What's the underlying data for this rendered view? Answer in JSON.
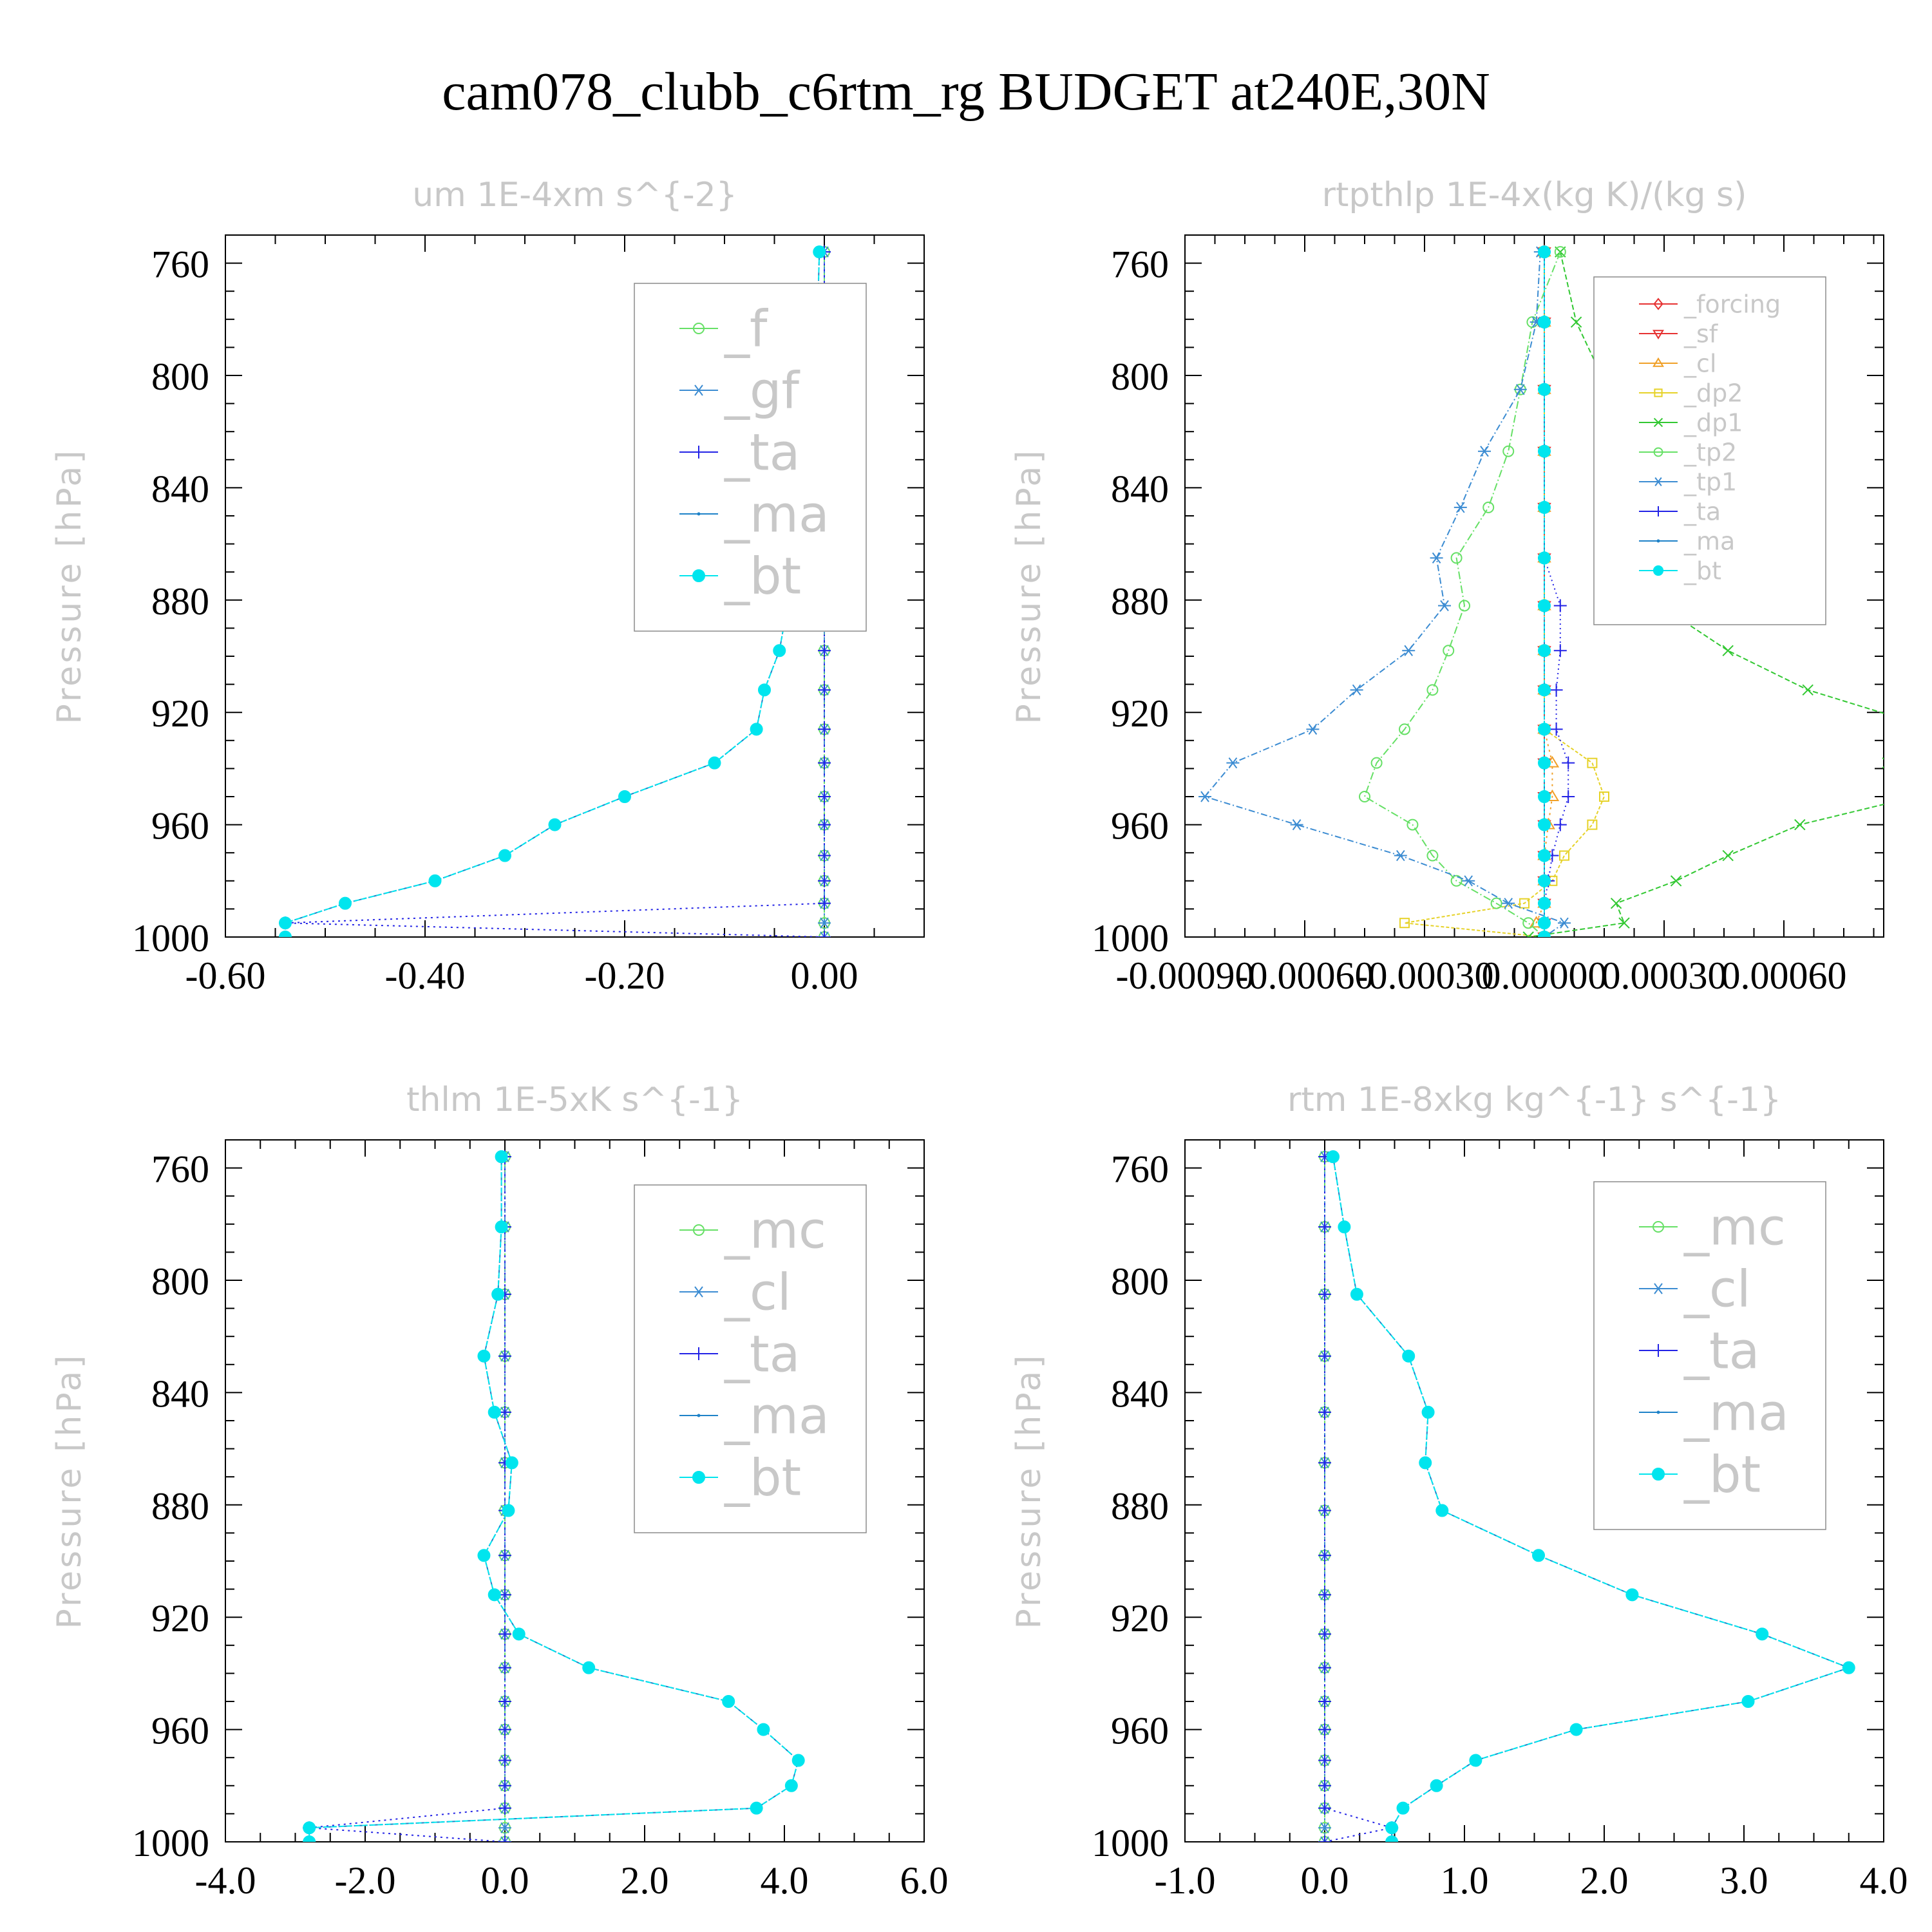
{
  "figure_title": "cam078_clubb_c6rtm_rg  BUDGET at240E,30N",
  "chart_data": [
    {
      "type": "line",
      "title": "um   1E-4xm s^{-2}",
      "ylabel": "Pressure [hPa]",
      "xlim": [
        -0.6,
        0.1
      ],
      "ylim": [
        1000,
        750
      ],
      "x_ticks": [
        -0.6,
        -0.4,
        -0.2,
        0.0
      ],
      "x_tick_labels": [
        "-0.60",
        "-0.40",
        "-0.20",
        "0.00"
      ],
      "y_ticks": [
        760,
        800,
        840,
        880,
        920,
        960,
        1000
      ],
      "y_tick_labels": [
        "760",
        "800",
        "840",
        "880",
        "920",
        "960",
        "1000"
      ],
      "legend_entries": [
        "_f",
        "_gf",
        "_ta",
        "_ma",
        "_bt"
      ],
      "pressure": [
        756,
        781,
        805,
        827,
        847,
        865,
        882,
        898,
        912,
        926,
        938,
        950,
        960,
        971,
        980,
        988,
        995,
        1000
      ],
      "series": [
        {
          "name": "_f",
          "color": "#66e066",
          "marker": "circle",
          "values": [
            0,
            0,
            0,
            0,
            0,
            0,
            0,
            0,
            0,
            0,
            0,
            0,
            0,
            0,
            0,
            0,
            0,
            0
          ]
        },
        {
          "name": "_gf",
          "color": "#3c8cd2",
          "marker": "asterisk",
          "values": [
            0,
            0,
            0,
            0,
            0,
            0,
            0,
            0,
            0,
            0,
            0,
            0,
            0,
            0,
            0,
            0,
            0,
            0
          ]
        },
        {
          "name": "_ta",
          "color": "#2323e6",
          "marker": "plus",
          "values": [
            0,
            0,
            0,
            0,
            0,
            0,
            0,
            0,
            0,
            0,
            0,
            0,
            0,
            0,
            0,
            0,
            -0.54,
            0
          ]
        },
        {
          "name": "_ma",
          "color": "#1e82c8",
          "marker": "dot",
          "values": [
            -0.005,
            -0.007,
            -0.012,
            -0.02,
            -0.028,
            -0.032,
            -0.037,
            -0.045,
            -0.06,
            -0.068,
            -0.11,
            -0.2,
            -0.27,
            -0.32,
            -0.39,
            -0.48,
            -0.54,
            -0.54
          ]
        },
        {
          "name": "_bt",
          "color": "#00e5ee",
          "marker": "filled-circle",
          "values": [
            -0.005,
            -0.007,
            -0.012,
            -0.02,
            -0.028,
            -0.032,
            -0.037,
            -0.045,
            -0.06,
            -0.068,
            -0.11,
            -0.2,
            -0.27,
            -0.32,
            -0.39,
            -0.48,
            -0.54,
            -0.54
          ]
        }
      ]
    },
    {
      "type": "line",
      "title": "rtpthlp   1E-4x(kg K)/(kg s)",
      "ylabel": "Pressure [hPa]",
      "xlim": [
        -0.0009,
        0.00085
      ],
      "ylim": [
        1000,
        750
      ],
      "x_ticks": [
        -0.0009,
        -0.0006,
        -0.0003,
        0.0,
        0.0003,
        0.0006
      ],
      "x_tick_labels": [
        "-0.00090",
        "-0.00060",
        "-0.00030",
        "0.00000",
        "0.00030",
        "0.00060"
      ],
      "y_ticks": [
        760,
        800,
        840,
        880,
        920,
        960,
        1000
      ],
      "y_tick_labels": [
        "760",
        "800",
        "840",
        "880",
        "920",
        "960",
        "1000"
      ],
      "legend_entries": [
        "_forcing",
        "_sf",
        "_cl",
        "_dp2",
        "_dp1",
        "_tp2",
        "_tp1",
        "_ta",
        "_ma",
        "_bt"
      ],
      "pressure": [
        756,
        781,
        805,
        827,
        847,
        865,
        882,
        898,
        912,
        926,
        938,
        950,
        960,
        971,
        980,
        988,
        995,
        1000
      ],
      "series": [
        {
          "name": "_forcing",
          "color": "#e63232",
          "marker": "diamond",
          "values": [
            0,
            0,
            0,
            0,
            0,
            0,
            0,
            0,
            0,
            0,
            0,
            0,
            0,
            0,
            0,
            0,
            0,
            0
          ]
        },
        {
          "name": "_sf",
          "color": "#e63232",
          "marker": "triangle-down",
          "values": [
            0,
            0,
            0,
            0,
            0,
            0,
            0,
            0,
            0,
            0,
            0,
            0,
            0,
            0,
            0,
            0,
            0,
            0
          ]
        },
        {
          "name": "_cl",
          "color": "#f0a028",
          "marker": "triangle-up",
          "values": [
            0,
            0,
            0,
            0,
            0,
            0,
            0,
            0,
            0,
            0,
            2e-05,
            2e-05,
            1e-05,
            0,
            0,
            0,
            -2e-05,
            0
          ]
        },
        {
          "name": "_dp2",
          "color": "#e6d228",
          "marker": "square",
          "values": [
            0,
            0,
            0,
            0,
            0,
            0,
            0,
            0,
            0,
            0,
            0.00012,
            0.00015,
            0.00012,
            5e-05,
            2e-05,
            -5e-05,
            -0.00035,
            0
          ]
        },
        {
          "name": "_dp1",
          "color": "#32c832",
          "marker": "x",
          "values": [
            4e-05,
            8e-05,
            0.00016,
            0.0002,
            0.00027,
            0.0003,
            0.00029,
            0.00046,
            0.00066,
            0.00098,
            0.00086,
            0.00093,
            0.00064,
            0.00046,
            0.00033,
            0.00018,
            0.0002,
            -4e-05
          ]
        },
        {
          "name": "_tp2",
          "color": "#66e066",
          "marker": "circle",
          "values": [
            4e-05,
            -3e-05,
            -6e-05,
            -9e-05,
            -0.00014,
            -0.00022,
            -0.0002,
            -0.00024,
            -0.00028,
            -0.00035,
            -0.00042,
            -0.00045,
            -0.00033,
            -0.00028,
            -0.00022,
            -0.00012,
            -4e-05,
            0
          ]
        },
        {
          "name": "_tp1",
          "color": "#3c8cd2",
          "marker": "asterisk",
          "values": [
            -1e-05,
            -2e-05,
            -6e-05,
            -0.00015,
            -0.00021,
            -0.00027,
            -0.00025,
            -0.00034,
            -0.00047,
            -0.00058,
            -0.00078,
            -0.00085,
            -0.00062,
            -0.00036,
            -0.00019,
            -9e-05,
            5e-05,
            0
          ]
        },
        {
          "name": "_ta",
          "color": "#2323e6",
          "marker": "plus",
          "values": [
            0,
            0,
            0,
            0,
            0,
            0,
            4e-05,
            4e-05,
            3e-05,
            3e-05,
            6e-05,
            6e-05,
            4e-05,
            2e-05,
            1e-05,
            0,
            0,
            0
          ]
        },
        {
          "name": "_ma",
          "color": "#1e82c8",
          "marker": "dot",
          "values": [
            0,
            0,
            0,
            0,
            0,
            0,
            0,
            0,
            0,
            0,
            0,
            0,
            0,
            0,
            0,
            0,
            0,
            0
          ]
        },
        {
          "name": "_bt",
          "color": "#00e5ee",
          "marker": "filled-circle",
          "values": [
            0,
            0,
            0,
            0,
            0,
            0,
            0,
            0,
            0,
            0,
            0,
            0,
            0,
            0,
            0,
            0,
            0,
            0
          ]
        }
      ]
    },
    {
      "type": "line",
      "title": "thlm   1E-5xK s^{-1}",
      "ylabel": "Pressure [hPa]",
      "xlim": [
        -4.0,
        6.0
      ],
      "ylim": [
        1000,
        750
      ],
      "x_ticks": [
        -4.0,
        -2.0,
        0.0,
        2.0,
        4.0,
        6.0
      ],
      "x_tick_labels": [
        "-4.0",
        "-2.0",
        "0.0",
        "2.0",
        "4.0",
        "6.0"
      ],
      "y_ticks": [
        760,
        800,
        840,
        880,
        920,
        960,
        1000
      ],
      "y_tick_labels": [
        "760",
        "800",
        "840",
        "880",
        "920",
        "960",
        "1000"
      ],
      "legend_entries": [
        "_mc",
        "_cl",
        "_ta",
        "_ma",
        "_bt"
      ],
      "pressure": [
        756,
        781,
        805,
        827,
        847,
        865,
        882,
        898,
        912,
        926,
        938,
        950,
        960,
        971,
        980,
        988,
        995,
        1000
      ],
      "series": [
        {
          "name": "_mc",
          "color": "#66e066",
          "marker": "circle",
          "values": [
            0,
            0,
            0,
            0,
            0,
            0,
            0,
            0,
            0,
            0,
            0,
            0,
            0,
            0,
            0,
            0,
            0,
            0
          ]
        },
        {
          "name": "_cl",
          "color": "#3c8cd2",
          "marker": "asterisk",
          "values": [
            0,
            0,
            0,
            0,
            0,
            0,
            0,
            0,
            0,
            0,
            0,
            0,
            0,
            0,
            0,
            0,
            0,
            0
          ]
        },
        {
          "name": "_ta",
          "color": "#2323e6",
          "marker": "plus",
          "values": [
            0,
            0,
            0,
            0,
            0,
            0,
            0,
            0,
            0,
            0,
            0,
            0,
            0,
            0,
            0,
            0,
            -2.8,
            0
          ]
        },
        {
          "name": "_ma",
          "color": "#1e82c8",
          "marker": "dot",
          "values": [
            -0.05,
            -0.05,
            -0.1,
            -0.3,
            -0.15,
            0.1,
            0.05,
            -0.3,
            -0.15,
            0.2,
            1.2,
            3.2,
            3.7,
            4.2,
            4.1,
            3.6,
            -2.8,
            -2.8
          ]
        },
        {
          "name": "_bt",
          "color": "#00e5ee",
          "marker": "filled-circle",
          "values": [
            -0.05,
            -0.05,
            -0.1,
            -0.3,
            -0.15,
            0.1,
            0.05,
            -0.3,
            -0.15,
            0.2,
            1.2,
            3.2,
            3.7,
            4.2,
            4.1,
            3.6,
            -2.8,
            -2.8
          ]
        }
      ]
    },
    {
      "type": "line",
      "title": "rtm   1E-8xkg kg^{-1} s^{-1}",
      "ylabel": "Pressure [hPa]",
      "xlim": [
        -1.0,
        4.0
      ],
      "ylim": [
        1000,
        750
      ],
      "x_ticks": [
        -1.0,
        0.0,
        1.0,
        2.0,
        3.0,
        4.0
      ],
      "x_tick_labels": [
        "-1.0",
        "0.0",
        "1.0",
        "2.0",
        "3.0",
        "4.0"
      ],
      "y_ticks": [
        760,
        800,
        840,
        880,
        920,
        960,
        1000
      ],
      "y_tick_labels": [
        "760",
        "800",
        "840",
        "880",
        "920",
        "960",
        "1000"
      ],
      "legend_entries": [
        "_mc",
        "_cl",
        "_ta",
        "_ma",
        "_bt"
      ],
      "pressure": [
        756,
        781,
        805,
        827,
        847,
        865,
        882,
        898,
        912,
        926,
        938,
        950,
        960,
        971,
        980,
        988,
        995,
        1000
      ],
      "series": [
        {
          "name": "_mc",
          "color": "#66e066",
          "marker": "circle",
          "values": [
            0,
            0,
            0,
            0,
            0,
            0,
            0,
            0,
            0,
            0,
            0,
            0,
            0,
            0,
            0,
            0,
            0,
            0
          ]
        },
        {
          "name": "_cl",
          "color": "#3c8cd2",
          "marker": "asterisk",
          "values": [
            0,
            0,
            0,
            0,
            0,
            0,
            0,
            0,
            0,
            0,
            0,
            0,
            0,
            0,
            0,
            0,
            0,
            0
          ]
        },
        {
          "name": "_ta",
          "color": "#2323e6",
          "marker": "plus",
          "values": [
            0,
            0,
            0,
            0,
            0,
            0,
            0,
            0,
            0,
            0,
            0,
            0,
            0,
            0,
            0,
            0,
            0.48,
            0
          ]
        },
        {
          "name": "_ma",
          "color": "#1e82c8",
          "marker": "dot",
          "values": [
            0.06,
            0.14,
            0.23,
            0.6,
            0.74,
            0.72,
            0.84,
            1.53,
            2.2,
            3.13,
            3.75,
            3.03,
            1.8,
            1.08,
            0.8,
            0.56,
            0.48,
            0.48
          ]
        },
        {
          "name": "_bt",
          "color": "#00e5ee",
          "marker": "filled-circle",
          "values": [
            0.06,
            0.14,
            0.23,
            0.6,
            0.74,
            0.72,
            0.84,
            1.53,
            2.2,
            3.13,
            3.75,
            3.03,
            1.8,
            1.08,
            0.8,
            0.56,
            0.48,
            0.48
          ]
        }
      ]
    }
  ]
}
